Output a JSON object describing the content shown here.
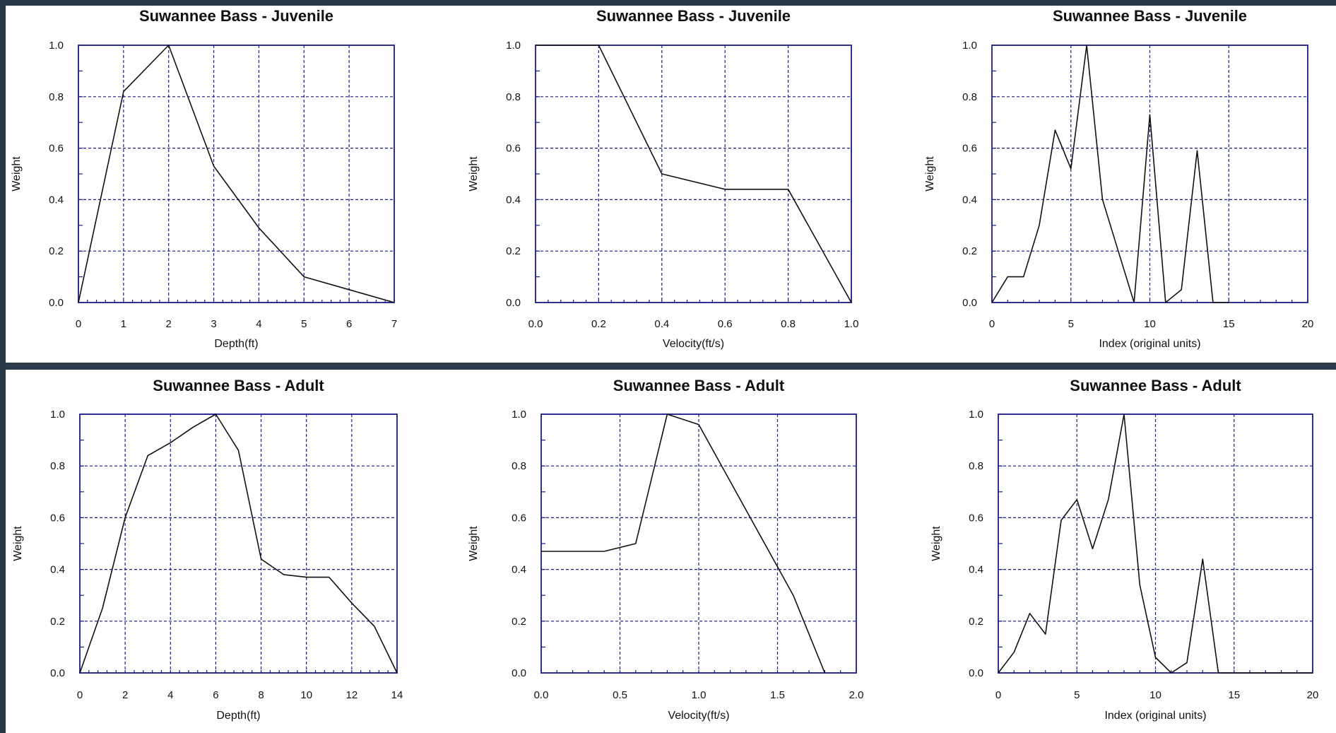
{
  "colors": {
    "frame": "#1a1a8c",
    "grid": "#1a1a8c",
    "line": "#111111",
    "background": "#ffffff",
    "border": "#2b3a48"
  },
  "chart_data": [
    {
      "type": "line",
      "title": "Suwannee Bass - Juvenile",
      "xlabel": "Depth(ft)",
      "ylabel": "Weight",
      "xlim": [
        0,
        7
      ],
      "ylim": [
        0,
        1
      ],
      "xticks": [
        "0",
        "1",
        "2",
        "3",
        "4",
        "5",
        "6",
        "7"
      ],
      "xtick_values": [
        0,
        1,
        2,
        3,
        4,
        5,
        6,
        7
      ],
      "yticks": [
        "0.0",
        "0.2",
        "0.4",
        "0.6",
        "0.8",
        "1.0"
      ],
      "ytick_values": [
        0,
        0.2,
        0.4,
        0.6,
        0.8,
        1.0
      ],
      "x": [
        0,
        1,
        2,
        3,
        4,
        5,
        6,
        7
      ],
      "y": [
        0,
        0.82,
        1.0,
        0.53,
        0.29,
        0.1,
        0.05,
        0
      ],
      "grid": true
    },
    {
      "type": "line",
      "title": "Suwannee Bass - Juvenile",
      "xlabel": "Velocity(ft/s)",
      "ylabel": "Weight",
      "xlim": [
        0,
        1
      ],
      "ylim": [
        0,
        1
      ],
      "xticks": [
        "0.0",
        "0.2",
        "0.4",
        "0.6",
        "0.8",
        "1.0"
      ],
      "xtick_values": [
        0,
        0.2,
        0.4,
        0.6,
        0.8,
        1.0
      ],
      "yticks": [
        "0.0",
        "0.2",
        "0.4",
        "0.6",
        "0.8",
        "1.0"
      ],
      "ytick_values": [
        0,
        0.2,
        0.4,
        0.6,
        0.8,
        1.0
      ],
      "x": [
        0,
        0.2,
        0.4,
        0.6,
        0.8,
        1.0
      ],
      "y": [
        1.0,
        1.0,
        0.5,
        0.44,
        0.44,
        0
      ],
      "grid": true
    },
    {
      "type": "line",
      "title": "Suwannee Bass - Juvenile",
      "xlabel": "Index (original units)",
      "ylabel": "Weight",
      "xlim": [
        0,
        20
      ],
      "ylim": [
        0,
        1
      ],
      "xticks": [
        "0",
        "5",
        "10",
        "15",
        "20"
      ],
      "xtick_values": [
        0,
        5,
        10,
        15,
        20
      ],
      "yticks": [
        "0.0",
        "0.2",
        "0.4",
        "0.6",
        "0.8",
        "1.0"
      ],
      "ytick_values": [
        0,
        0.2,
        0.4,
        0.6,
        0.8,
        1.0
      ],
      "x": [
        0,
        1,
        2,
        3,
        4,
        5,
        6,
        7,
        8,
        9,
        10,
        11,
        12,
        13,
        14,
        15
      ],
      "y": [
        0,
        0.1,
        0.1,
        0.3,
        0.67,
        0.52,
        1.0,
        0.4,
        0.2,
        0,
        0.73,
        0,
        0.05,
        0.59,
        0,
        0
      ],
      "grid": true
    },
    {
      "type": "line",
      "title": "Suwannee Bass - Adult",
      "xlabel": "Depth(ft)",
      "ylabel": "Weight",
      "xlim": [
        0,
        14
      ],
      "ylim": [
        0,
        1
      ],
      "xticks": [
        "0",
        "2",
        "4",
        "6",
        "8",
        "10",
        "12",
        "14"
      ],
      "xtick_values": [
        0,
        2,
        4,
        6,
        8,
        10,
        12,
        14
      ],
      "yticks": [
        "0.0",
        "0.2",
        "0.4",
        "0.6",
        "0.8",
        "1.0"
      ],
      "ytick_values": [
        0,
        0.2,
        0.4,
        0.6,
        0.8,
        1.0
      ],
      "x": [
        0,
        1,
        2,
        3,
        4,
        5,
        6,
        7,
        8,
        9,
        10,
        11,
        12,
        13,
        14
      ],
      "y": [
        0,
        0.25,
        0.6,
        0.84,
        0.89,
        0.95,
        1.0,
        0.86,
        0.44,
        0.38,
        0.37,
        0.37,
        0.27,
        0.18,
        0
      ],
      "grid": true
    },
    {
      "type": "line",
      "title": "Suwannee Bass - Adult",
      "xlabel": "Velocity(ft/s)",
      "ylabel": "Weight",
      "xlim": [
        0,
        2
      ],
      "ylim": [
        0,
        1
      ],
      "xticks": [
        "0.0",
        "0.5",
        "1.0",
        "1.5",
        "2.0"
      ],
      "xtick_values": [
        0,
        0.5,
        1.0,
        1.5,
        2.0
      ],
      "yticks": [
        "0.0",
        "0.2",
        "0.4",
        "0.6",
        "0.8",
        "1.0"
      ],
      "ytick_values": [
        0,
        0.2,
        0.4,
        0.6,
        0.8,
        1.0
      ],
      "x": [
        0,
        0.4,
        0.6,
        0.8,
        1.0,
        1.5,
        1.6,
        1.8
      ],
      "y": [
        0.47,
        0.47,
        0.5,
        1.0,
        0.96,
        0.41,
        0.3,
        0
      ],
      "grid": true
    },
    {
      "type": "line",
      "title": "Suwannee Bass - Adult",
      "xlabel": "Index (original units)",
      "ylabel": "Weight",
      "xlim": [
        0,
        20
      ],
      "ylim": [
        0,
        1
      ],
      "xticks": [
        "0",
        "5",
        "10",
        "15",
        "20"
      ],
      "xtick_values": [
        0,
        5,
        10,
        15,
        20
      ],
      "yticks": [
        "0.0",
        "0.2",
        "0.4",
        "0.6",
        "0.8",
        "1.0"
      ],
      "ytick_values": [
        0,
        0.2,
        0.4,
        0.6,
        0.8,
        1.0
      ],
      "x": [
        0,
        1,
        2,
        3,
        4,
        5,
        6,
        7,
        8,
        9,
        10,
        11,
        12,
        13,
        14,
        15,
        16,
        17,
        18,
        19,
        20
      ],
      "y": [
        0,
        0.08,
        0.23,
        0.15,
        0.59,
        0.67,
        0.48,
        0.67,
        1.0,
        0.34,
        0.06,
        0,
        0.04,
        0.44,
        0,
        0,
        0,
        0,
        0,
        0,
        0
      ],
      "grid": true
    }
  ]
}
